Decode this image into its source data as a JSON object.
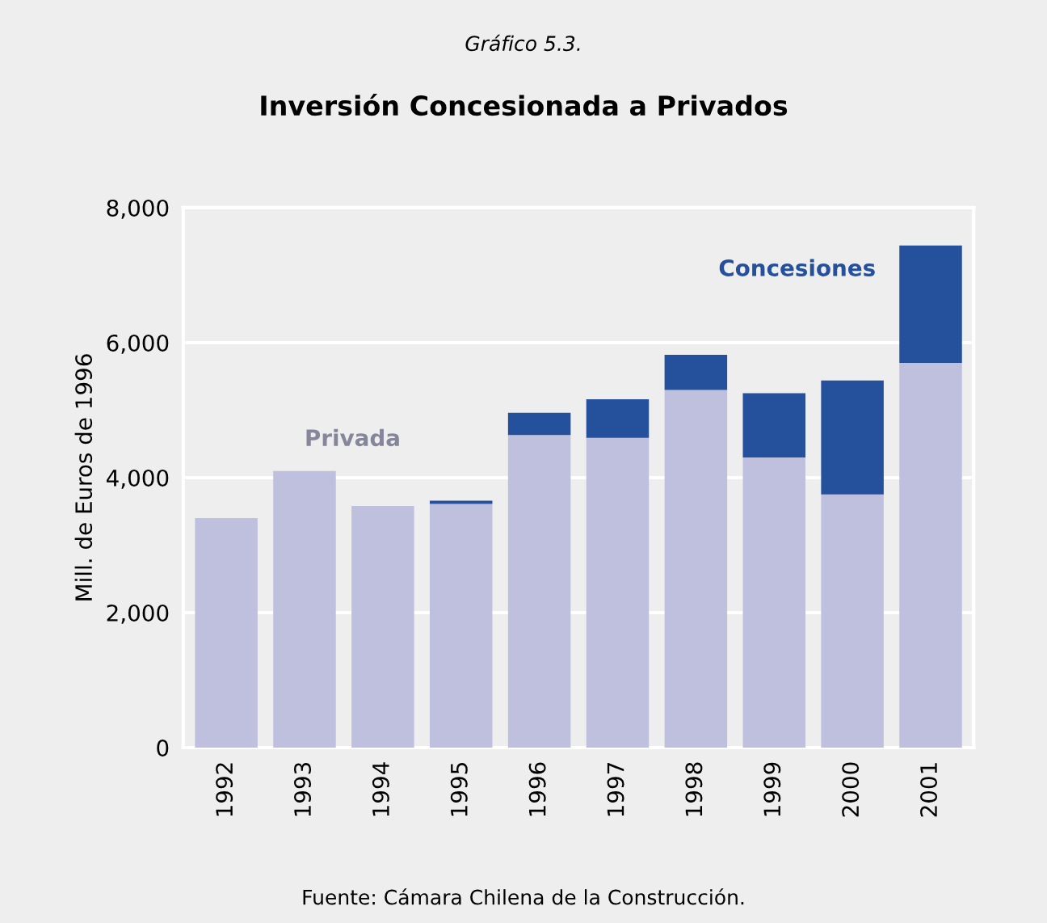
{
  "chart_data": {
    "type": "bar",
    "stacked": true,
    "subtitle": "Gráfico 5.3.",
    "title": "Inversión Concesionada a Privados",
    "ylabel": "Mill. de Euros de 1996",
    "categories": [
      "1992",
      "1993",
      "1994",
      "1995",
      "1996",
      "1997",
      "1998",
      "1999",
      "2000",
      "2001"
    ],
    "series": [
      {
        "name": "Privada",
        "color": "#bfc0dd",
        "values": [
          3400,
          4100,
          3580,
          3610,
          4630,
          4590,
          5300,
          4300,
          3750,
          5700
        ]
      },
      {
        "name": "Concesiones",
        "color": "#25509c",
        "values": [
          0,
          0,
          0,
          50,
          330,
          570,
          520,
          950,
          1690,
          1740
        ]
      }
    ],
    "ylim": [
      0,
      8000
    ],
    "yticks": [
      {
        "value": 0,
        "label": "0"
      },
      {
        "value": 2000,
        "label": "2,000"
      },
      {
        "value": 4000,
        "label": "4,000"
      },
      {
        "value": 6000,
        "label": "6,000"
      },
      {
        "value": 8000,
        "label": "8,000"
      }
    ],
    "grid": "y",
    "legend": false,
    "annotations": [
      "Fuente: Cámara Chilena de la Construcción."
    ]
  }
}
